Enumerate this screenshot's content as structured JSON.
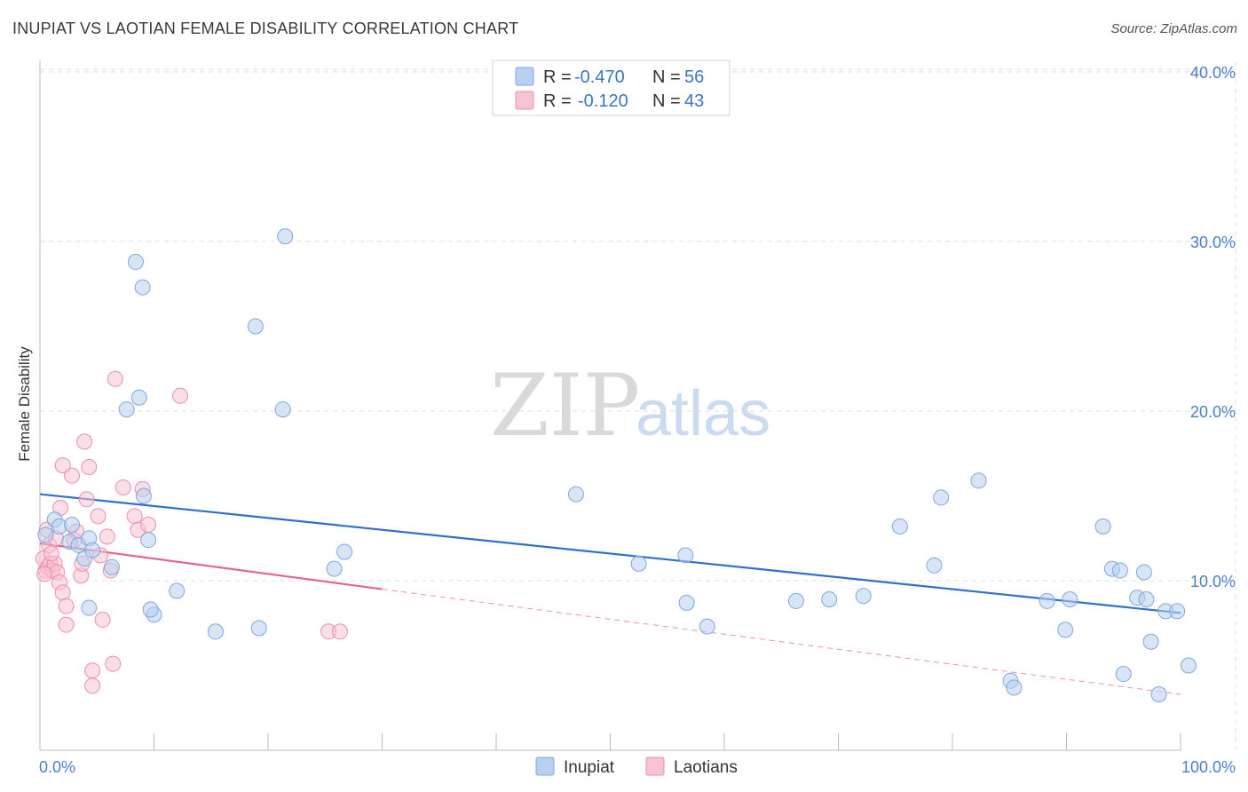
{
  "title": "INUPIAT VS LAOTIAN FEMALE DISABILITY CORRELATION CHART",
  "source": "Source: ZipAtlas.com",
  "watermark": {
    "zip": "ZIP",
    "atlas": "atlas"
  },
  "colors": {
    "inupiat_fill": "#b8d0f0",
    "inupiat_stroke": "#7fa8dc",
    "inupiat_line": "#2f6fcf",
    "laotian_fill": "#f7c2d2",
    "laotian_stroke": "#ec8fad",
    "laotian_line": "#e8608c",
    "grid": "#dddddd",
    "axis_label": "#4a7fcf"
  },
  "legend": {
    "inupiat": {
      "r_label": "R = ",
      "r_value": "-0.470",
      "n_label": "N = ",
      "n_value": "56"
    },
    "laotian": {
      "r_label": "R = ",
      "r_value": "-0.120",
      "n_label": "N = ",
      "n_value": "43"
    }
  },
  "chart_data": {
    "type": "scatter",
    "title": "INUPIAT VS LAOTIAN FEMALE DISABILITY CORRELATION CHART",
    "xlabel": "",
    "ylabel": "Female Disability",
    "xlim": [
      0,
      100
    ],
    "ylim": [
      0,
      42
    ],
    "x_tick_labels": {
      "min": "0.0%",
      "max": "100.0%"
    },
    "y_ticks": [
      10,
      20,
      30,
      40
    ],
    "y_tick_labels": [
      "10.0%",
      "20.0%",
      "30.0%",
      "40.0%"
    ],
    "grid": true,
    "series": [
      {
        "name": "Inupiat",
        "points": [
          [
            0.5,
            12.7
          ],
          [
            1.3,
            13.6
          ],
          [
            1.7,
            13.2
          ],
          [
            2.6,
            12.3
          ],
          [
            2.8,
            13.3
          ],
          [
            3.4,
            12.1
          ],
          [
            3.9,
            11.3
          ],
          [
            4.3,
            12.5
          ],
          [
            4.6,
            11.8
          ],
          [
            6.3,
            10.8
          ],
          [
            7.6,
            20.1
          ],
          [
            8.7,
            20.8
          ],
          [
            9.1,
            15.0
          ],
          [
            9.5,
            12.4
          ],
          [
            10.0,
            8.0
          ],
          [
            8.4,
            28.8
          ],
          [
            9.0,
            27.3
          ],
          [
            9.7,
            8.3
          ],
          [
            12.0,
            9.4
          ],
          [
            15.4,
            7.0
          ],
          [
            18.9,
            25.0
          ],
          [
            19.2,
            7.2
          ],
          [
            21.3,
            20.1
          ],
          [
            21.5,
            30.3
          ],
          [
            25.8,
            10.7
          ],
          [
            26.7,
            11.7
          ],
          [
            47.0,
            15.1
          ],
          [
            52.5,
            11.0
          ],
          [
            56.6,
            11.5
          ],
          [
            56.7,
            8.7
          ],
          [
            58.5,
            7.3
          ],
          [
            66.3,
            8.8
          ],
          [
            69.2,
            8.9
          ],
          [
            72.2,
            9.1
          ],
          [
            75.4,
            13.2
          ],
          [
            78.4,
            10.9
          ],
          [
            79.0,
            14.9
          ],
          [
            82.3,
            15.9
          ],
          [
            85.1,
            4.1
          ],
          [
            85.4,
            3.7
          ],
          [
            88.3,
            8.8
          ],
          [
            89.9,
            7.1
          ],
          [
            90.3,
            8.9
          ],
          [
            93.2,
            13.2
          ],
          [
            94.0,
            10.7
          ],
          [
            94.7,
            10.6
          ],
          [
            95.0,
            4.5
          ],
          [
            96.2,
            9.0
          ],
          [
            97.0,
            8.9
          ],
          [
            96.8,
            10.5
          ],
          [
            97.4,
            6.4
          ],
          [
            98.1,
            3.3
          ],
          [
            98.7,
            8.2
          ],
          [
            99.7,
            8.2
          ],
          [
            100.7,
            5.0
          ],
          [
            4.3,
            8.4
          ]
        ],
        "trend": {
          "x0": 0,
          "y0": 15.1,
          "x1": 100,
          "y1": 8.1
        }
      },
      {
        "name": "Laotians",
        "points": [
          [
            0.3,
            11.3
          ],
          [
            0.5,
            10.6
          ],
          [
            0.7,
            10.8
          ],
          [
            0.9,
            11.0
          ],
          [
            1.1,
            10.6
          ],
          [
            1.3,
            11.0
          ],
          [
            1.5,
            10.5
          ],
          [
            1.7,
            9.9
          ],
          [
            2.0,
            9.3
          ],
          [
            2.3,
            8.5
          ],
          [
            2.3,
            7.4
          ],
          [
            2.8,
            16.2
          ],
          [
            3.0,
            12.4
          ],
          [
            3.2,
            12.9
          ],
          [
            3.6,
            10.3
          ],
          [
            3.7,
            11.0
          ],
          [
            4.1,
            14.8
          ],
          [
            4.3,
            16.7
          ],
          [
            4.6,
            4.7
          ],
          [
            4.6,
            3.8
          ],
          [
            5.1,
            13.8
          ],
          [
            5.5,
            7.7
          ],
          [
            5.9,
            12.6
          ],
          [
            6.2,
            10.6
          ],
          [
            5.3,
            11.5
          ],
          [
            6.4,
            5.1
          ],
          [
            6.6,
            21.9
          ],
          [
            7.3,
            15.5
          ],
          [
            8.3,
            13.8
          ],
          [
            8.6,
            13.0
          ],
          [
            9.0,
            15.4
          ],
          [
            9.5,
            13.3
          ],
          [
            12.3,
            20.9
          ],
          [
            3.9,
            18.2
          ],
          [
            1.8,
            14.3
          ],
          [
            2.0,
            16.8
          ],
          [
            0.6,
            13.0
          ],
          [
            0.8,
            12.1
          ],
          [
            1.0,
            11.6
          ],
          [
            25.3,
            7.0
          ],
          [
            26.3,
            7.0
          ],
          [
            0.4,
            10.4
          ],
          [
            1.4,
            12.5
          ]
        ],
        "trend": {
          "x0": 0,
          "y0": 12.2,
          "x1": 30,
          "y1": 9.5
        },
        "trend_extension": {
          "x0": 30,
          "y0": 9.5,
          "x1": 100,
          "y1": 3.3
        }
      }
    ]
  },
  "bottom_legend": [
    {
      "label": "Inupiat"
    },
    {
      "label": "Laotians"
    }
  ]
}
